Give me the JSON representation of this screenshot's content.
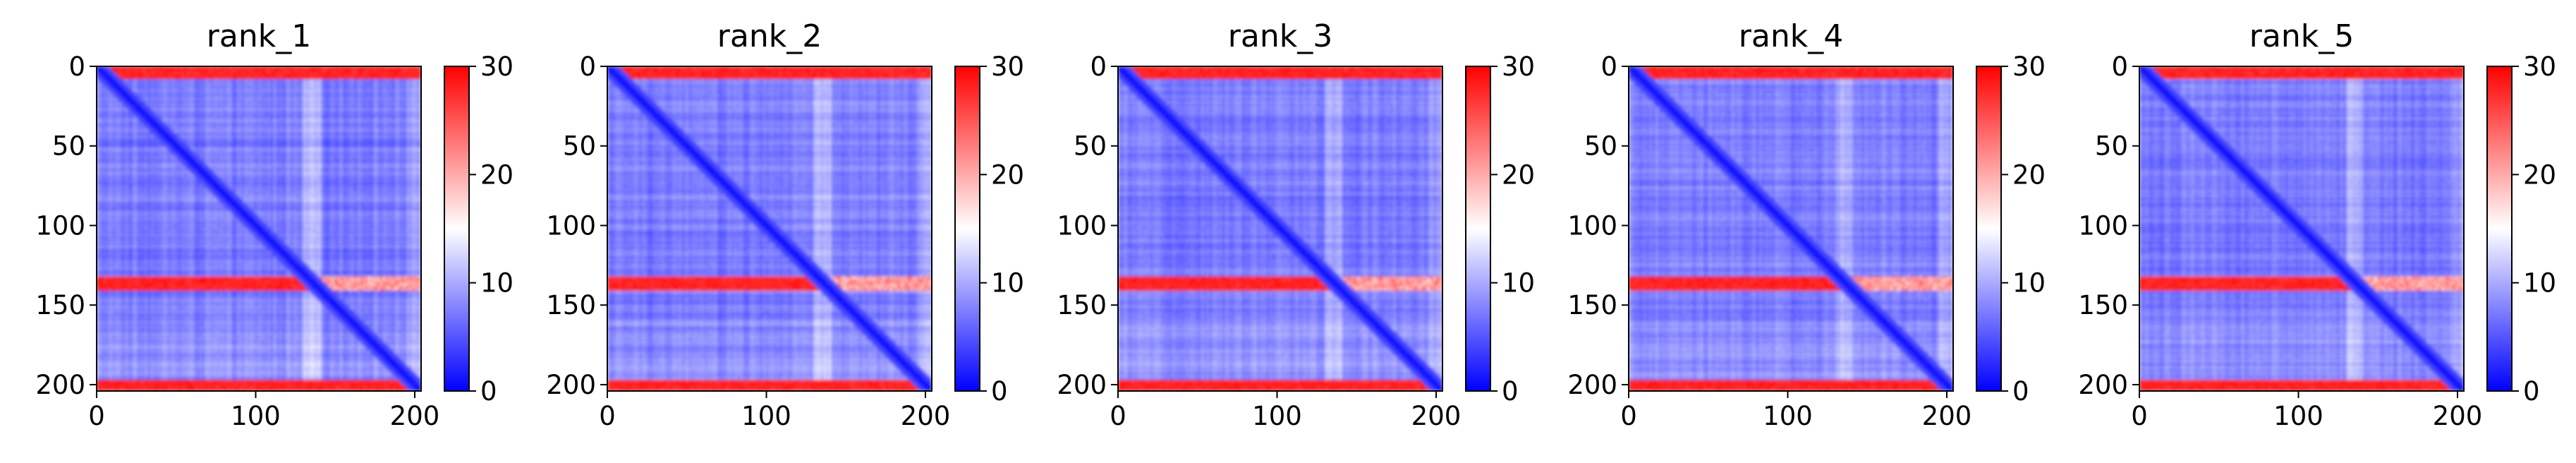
{
  "chart_data": [
    {
      "type": "heatmap",
      "title": "rank_1",
      "xticks": [
        "0",
        "100",
        "200"
      ],
      "yticks": [
        "0",
        "50",
        "100",
        "150",
        "200"
      ],
      "xlim": [
        0,
        204
      ],
      "ylim": [
        204,
        0
      ],
      "matrix_size": 204,
      "colorbar": {
        "ticks": [
          "0",
          "10",
          "20",
          "30"
        ],
        "range": [
          0,
          30
        ],
        "colormap": "bwr"
      },
      "features": {
        "red_bands_rows": [
          [
            0,
            7
          ],
          [
            132,
            140
          ],
          [
            197,
            204
          ]
        ],
        "diagonal": "low"
      }
    },
    {
      "type": "heatmap",
      "title": "rank_2",
      "xticks": [
        "0",
        "100",
        "200"
      ],
      "yticks": [
        "0",
        "50",
        "100",
        "150",
        "200"
      ],
      "xlim": [
        0,
        204
      ],
      "ylim": [
        204,
        0
      ],
      "matrix_size": 204,
      "colorbar": {
        "ticks": [
          "0",
          "10",
          "20",
          "30"
        ],
        "range": [
          0,
          30
        ],
        "colormap": "bwr"
      },
      "features": {
        "red_bands_rows": [
          [
            0,
            7
          ],
          [
            132,
            140
          ],
          [
            197,
            204
          ]
        ],
        "diagonal": "low"
      }
    },
    {
      "type": "heatmap",
      "title": "rank_3",
      "xticks": [
        "0",
        "100",
        "200"
      ],
      "yticks": [
        "0",
        "50",
        "100",
        "150",
        "200"
      ],
      "xlim": [
        0,
        204
      ],
      "ylim": [
        204,
        0
      ],
      "matrix_size": 204,
      "colorbar": {
        "ticks": [
          "0",
          "10",
          "20",
          "30"
        ],
        "range": [
          0,
          30
        ],
        "colormap": "bwr"
      },
      "features": {
        "red_bands_rows": [
          [
            0,
            7
          ],
          [
            132,
            140
          ],
          [
            197,
            204
          ]
        ],
        "diagonal": "low"
      }
    },
    {
      "type": "heatmap",
      "title": "rank_4",
      "xticks": [
        "0",
        "100",
        "200"
      ],
      "yticks": [
        "0",
        "50",
        "100",
        "150",
        "200"
      ],
      "xlim": [
        0,
        204
      ],
      "ylim": [
        204,
        0
      ],
      "matrix_size": 204,
      "colorbar": {
        "ticks": [
          "0",
          "10",
          "20",
          "30"
        ],
        "range": [
          0,
          30
        ],
        "colormap": "bwr"
      },
      "features": {
        "red_bands_rows": [
          [
            0,
            7
          ],
          [
            132,
            140
          ],
          [
            197,
            204
          ]
        ],
        "diagonal": "low"
      }
    },
    {
      "type": "heatmap",
      "title": "rank_5",
      "xticks": [
        "0",
        "100",
        "200"
      ],
      "yticks": [
        "0",
        "50",
        "100",
        "150",
        "200"
      ],
      "xlim": [
        0,
        204
      ],
      "ylim": [
        204,
        0
      ],
      "matrix_size": 204,
      "colorbar": {
        "ticks": [
          "0",
          "10",
          "20",
          "30"
        ],
        "range": [
          0,
          30
        ],
        "colormap": "bwr"
      },
      "features": {
        "red_bands_rows": [
          [
            0,
            7
          ],
          [
            132,
            140
          ],
          [
            197,
            204
          ]
        ],
        "diagonal": "low"
      }
    }
  ]
}
